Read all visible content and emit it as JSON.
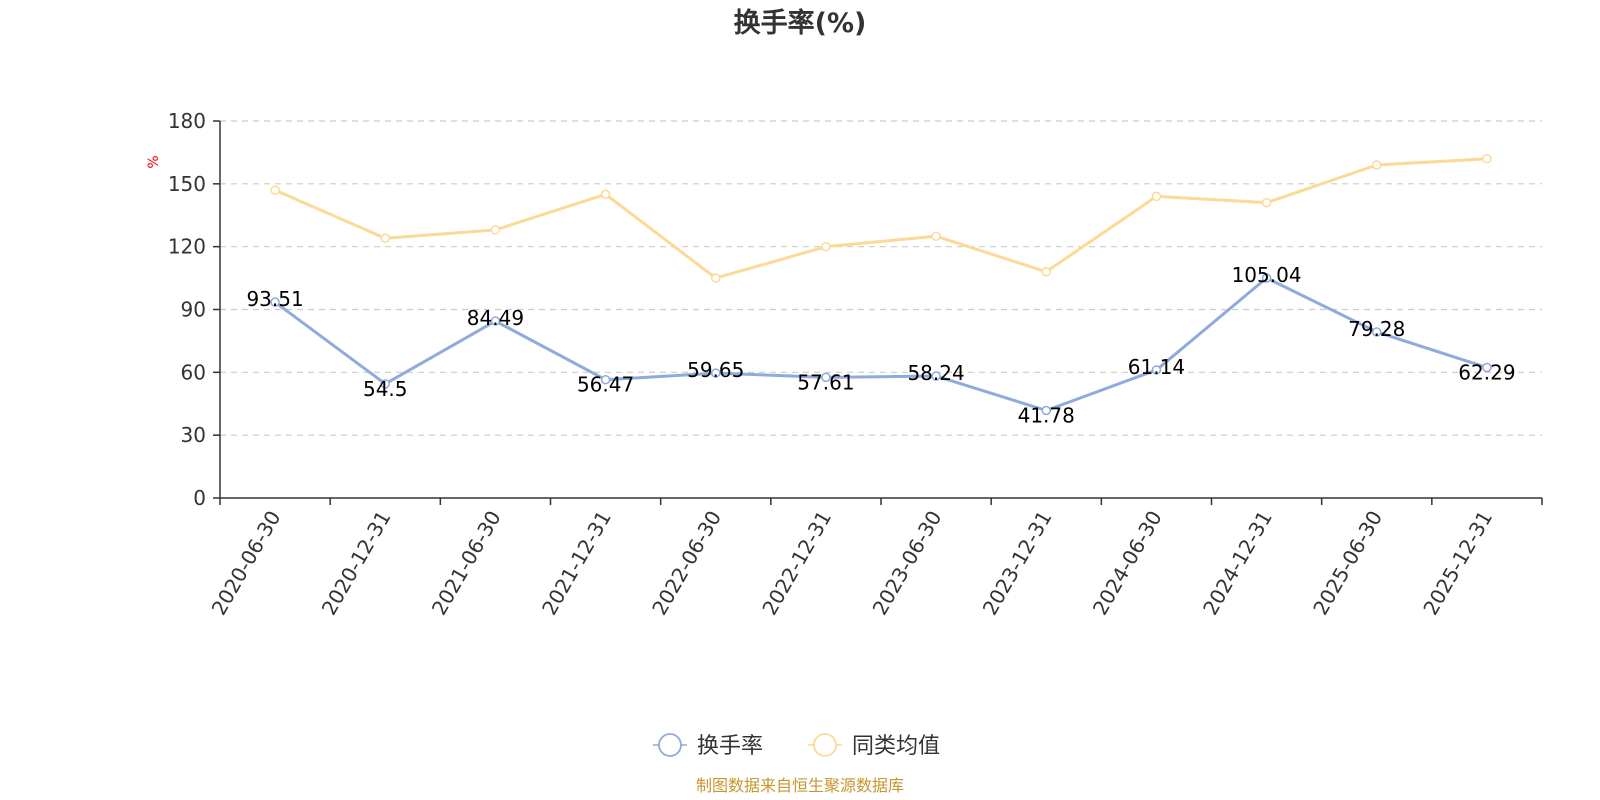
{
  "chart_data": {
    "type": "line",
    "title": "换手率(%)",
    "ylabel": "%",
    "ylim": [
      0,
      180
    ],
    "yticks": [
      0,
      30,
      60,
      90,
      120,
      150,
      180
    ],
    "grid": true,
    "legend_position": "bottom",
    "categories": [
      "2020-06-30",
      "2020-12-31",
      "2021-06-30",
      "2021-12-31",
      "2022-06-30",
      "2022-12-31",
      "2023-06-30",
      "2023-12-31",
      "2024-06-30",
      "2024-12-31",
      "2025-06-30",
      "2025-12-31"
    ],
    "series": [
      {
        "name": "换手率",
        "color": "#8faadc",
        "values": [
          93.51,
          54.5,
          84.49,
          56.47,
          59.65,
          57.61,
          58.24,
          41.78,
          61.14,
          105.04,
          79.28,
          62.29
        ],
        "labels": [
          "93.51",
          "54.5",
          "84.49",
          "56.47",
          "59.65",
          "57.61",
          "58.24",
          "41.78",
          "61.14",
          "105.04",
          "79.28",
          "62.29"
        ]
      },
      {
        "name": "同类均值",
        "color": "#fcd997",
        "values": [
          147,
          124,
          128,
          145,
          105,
          120,
          125,
          108,
          144,
          141,
          159,
          162
        ]
      }
    ]
  },
  "source_note": "制图数据来自恒生聚源数据库",
  "colors": {
    "axis": "#333333",
    "grid": "#cccccc",
    "unit": "#ff0000",
    "source": "#c8962e"
  }
}
